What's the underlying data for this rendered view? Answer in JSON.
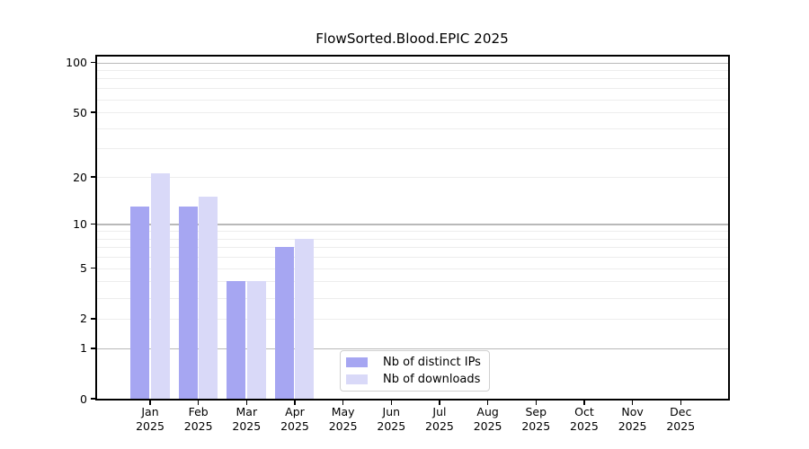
{
  "chart_data": {
    "type": "bar",
    "title": "FlowSorted.Blood.EPIC 2025",
    "x": {
      "months": [
        "Jan",
        "Feb",
        "Mar",
        "Apr",
        "May",
        "Jun",
        "Jul",
        "Aug",
        "Sep",
        "Oct",
        "Nov",
        "Dec"
      ],
      "year": "2025"
    },
    "series": [
      {
        "name": "Nb of distinct IPs",
        "color": "#a6a6f2",
        "values": [
          13,
          13,
          4,
          7,
          0,
          0,
          0,
          0,
          0,
          0,
          0,
          0
        ]
      },
      {
        "name": "Nb of downloads",
        "color": "#d9d9f8",
        "values": [
          21,
          15,
          4,
          8,
          0,
          0,
          0,
          0,
          0,
          0,
          0,
          0
        ]
      }
    ],
    "y_axis": {
      "scale": "log10(1+y)",
      "tick_values": [
        0,
        1,
        2,
        5,
        10,
        20,
        50,
        100
      ],
      "major_gridlines": [
        1,
        10,
        100
      ],
      "minor_gridlines": [
        2,
        3,
        4,
        5,
        6,
        7,
        8,
        9,
        20,
        30,
        40,
        50,
        60,
        70,
        80,
        90
      ],
      "ylim": [
        0,
        111
      ]
    },
    "legend": {
      "position": "lower center"
    },
    "grid": "horizontal-only",
    "colors": {
      "major_grid": "#b9b9b9",
      "minor_grid": "#ededed",
      "axis": "#000000",
      "text": "#000000",
      "background": "#ffffff"
    }
  }
}
